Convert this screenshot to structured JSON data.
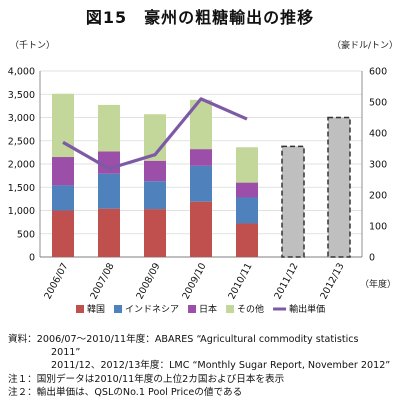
{
  "page_title": "図15　豪州の粗糖輸出の推移",
  "chart_data": {
    "type": "bar",
    "stacked": true,
    "left_unit": "（千トン）",
    "right_unit": "（豪ドル/トン）",
    "x_unit": "（年度）",
    "categories": [
      "2006/07",
      "2007/08",
      "2008/09",
      "2009/10",
      "2010/11",
      "2011/12",
      "2012/13"
    ],
    "left_axis": {
      "min": 0,
      "max": 4000,
      "step": 500,
      "ticks": [
        "0",
        "500",
        "1,000",
        "1,500",
        "2,000",
        "2,500",
        "3,000",
        "3,500",
        "4,000"
      ]
    },
    "right_axis": {
      "min": 0,
      "max": 600,
      "step": 100,
      "ticks": [
        "0",
        "100",
        "200",
        "300",
        "400",
        "500",
        "600"
      ]
    },
    "series": [
      {
        "name": "韓国",
        "color": "#c0504d",
        "values": [
          1000,
          1040,
          1030,
          1190,
          720,
          null,
          null
        ]
      },
      {
        "name": "インドネシア",
        "color": "#4f81bd",
        "values": [
          540,
          750,
          600,
          770,
          560,
          null,
          null
        ]
      },
      {
        "name": "日本",
        "color": "#9b4fa8",
        "values": [
          610,
          480,
          440,
          360,
          320,
          null,
          null
        ]
      },
      {
        "name": "その他",
        "color": "#c4d79b",
        "values": [
          1360,
          1000,
          1000,
          1060,
          760,
          null,
          null
        ]
      }
    ],
    "forecast_totals": [
      null,
      null,
      null,
      null,
      null,
      2380,
      3000
    ],
    "forecast_style": {
      "fill": "#bfbfbf",
      "border": "#333333"
    },
    "line_series": {
      "name": "輸出単価",
      "axis": "right",
      "color": "#7d5aa6",
      "values": [
        370,
        285,
        330,
        510,
        445,
        null,
        null
      ]
    },
    "legend_position": "bottom"
  },
  "notes": {
    "source_line1": "資料：2006/07～2010/11年度：ABARES “Agricultural commodity statistics",
    "source_line1b": "2011”",
    "source_line2": "2011/12、2012/13年度：LMC “Monthly Sugar Report, November 2012”",
    "note1": "注１：国別データは2010/11年度の上位2カ国および日本を表示",
    "note2": "注２：輸出単価は、QSLのNo.1 Pool Priceの値である"
  }
}
